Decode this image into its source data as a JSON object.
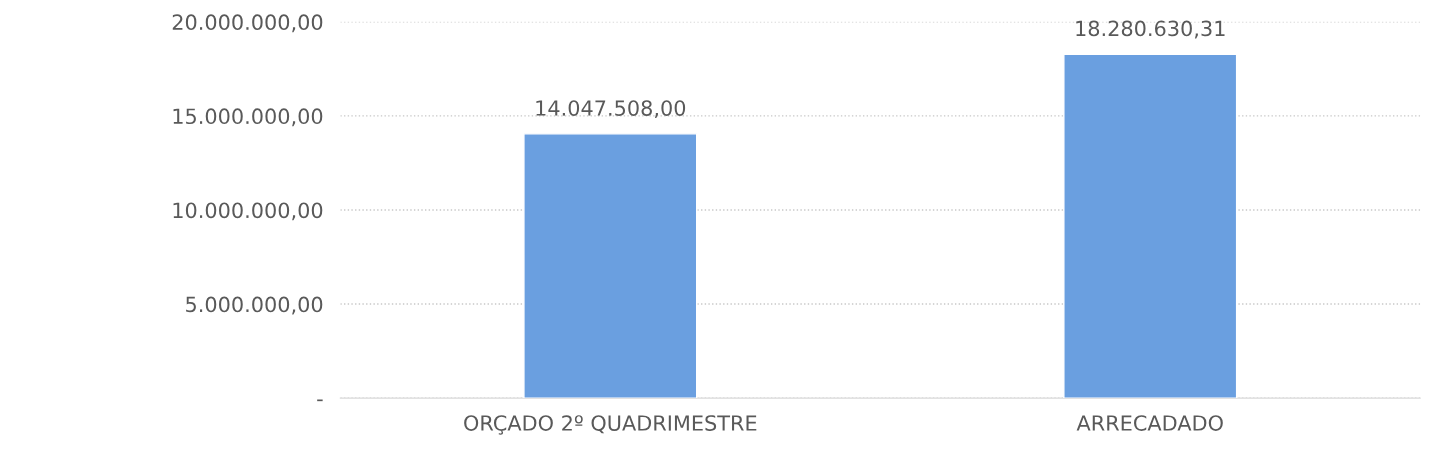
{
  "chart_data": {
    "type": "bar",
    "categories": [
      "ORÇADO 2º QUADRIMESTRE",
      "ARRECADADO"
    ],
    "values": [
      14047508.0,
      18280630.31
    ],
    "value_labels": [
      "14.047.508,00",
      "18.280.630,31"
    ],
    "color": "#6a9fe0",
    "ylim": [
      0,
      20000000
    ],
    "yticks": [
      {
        "value": 0,
        "label": "-"
      },
      {
        "value": 5000000,
        "label": "5.000.000,00"
      },
      {
        "value": 10000000,
        "label": "10.000.000,00"
      },
      {
        "value": 15000000,
        "label": "15.000.000,00"
      },
      {
        "value": 20000000,
        "label": "20.000.000,00"
      }
    ],
    "grid": "y",
    "legend": false
  }
}
